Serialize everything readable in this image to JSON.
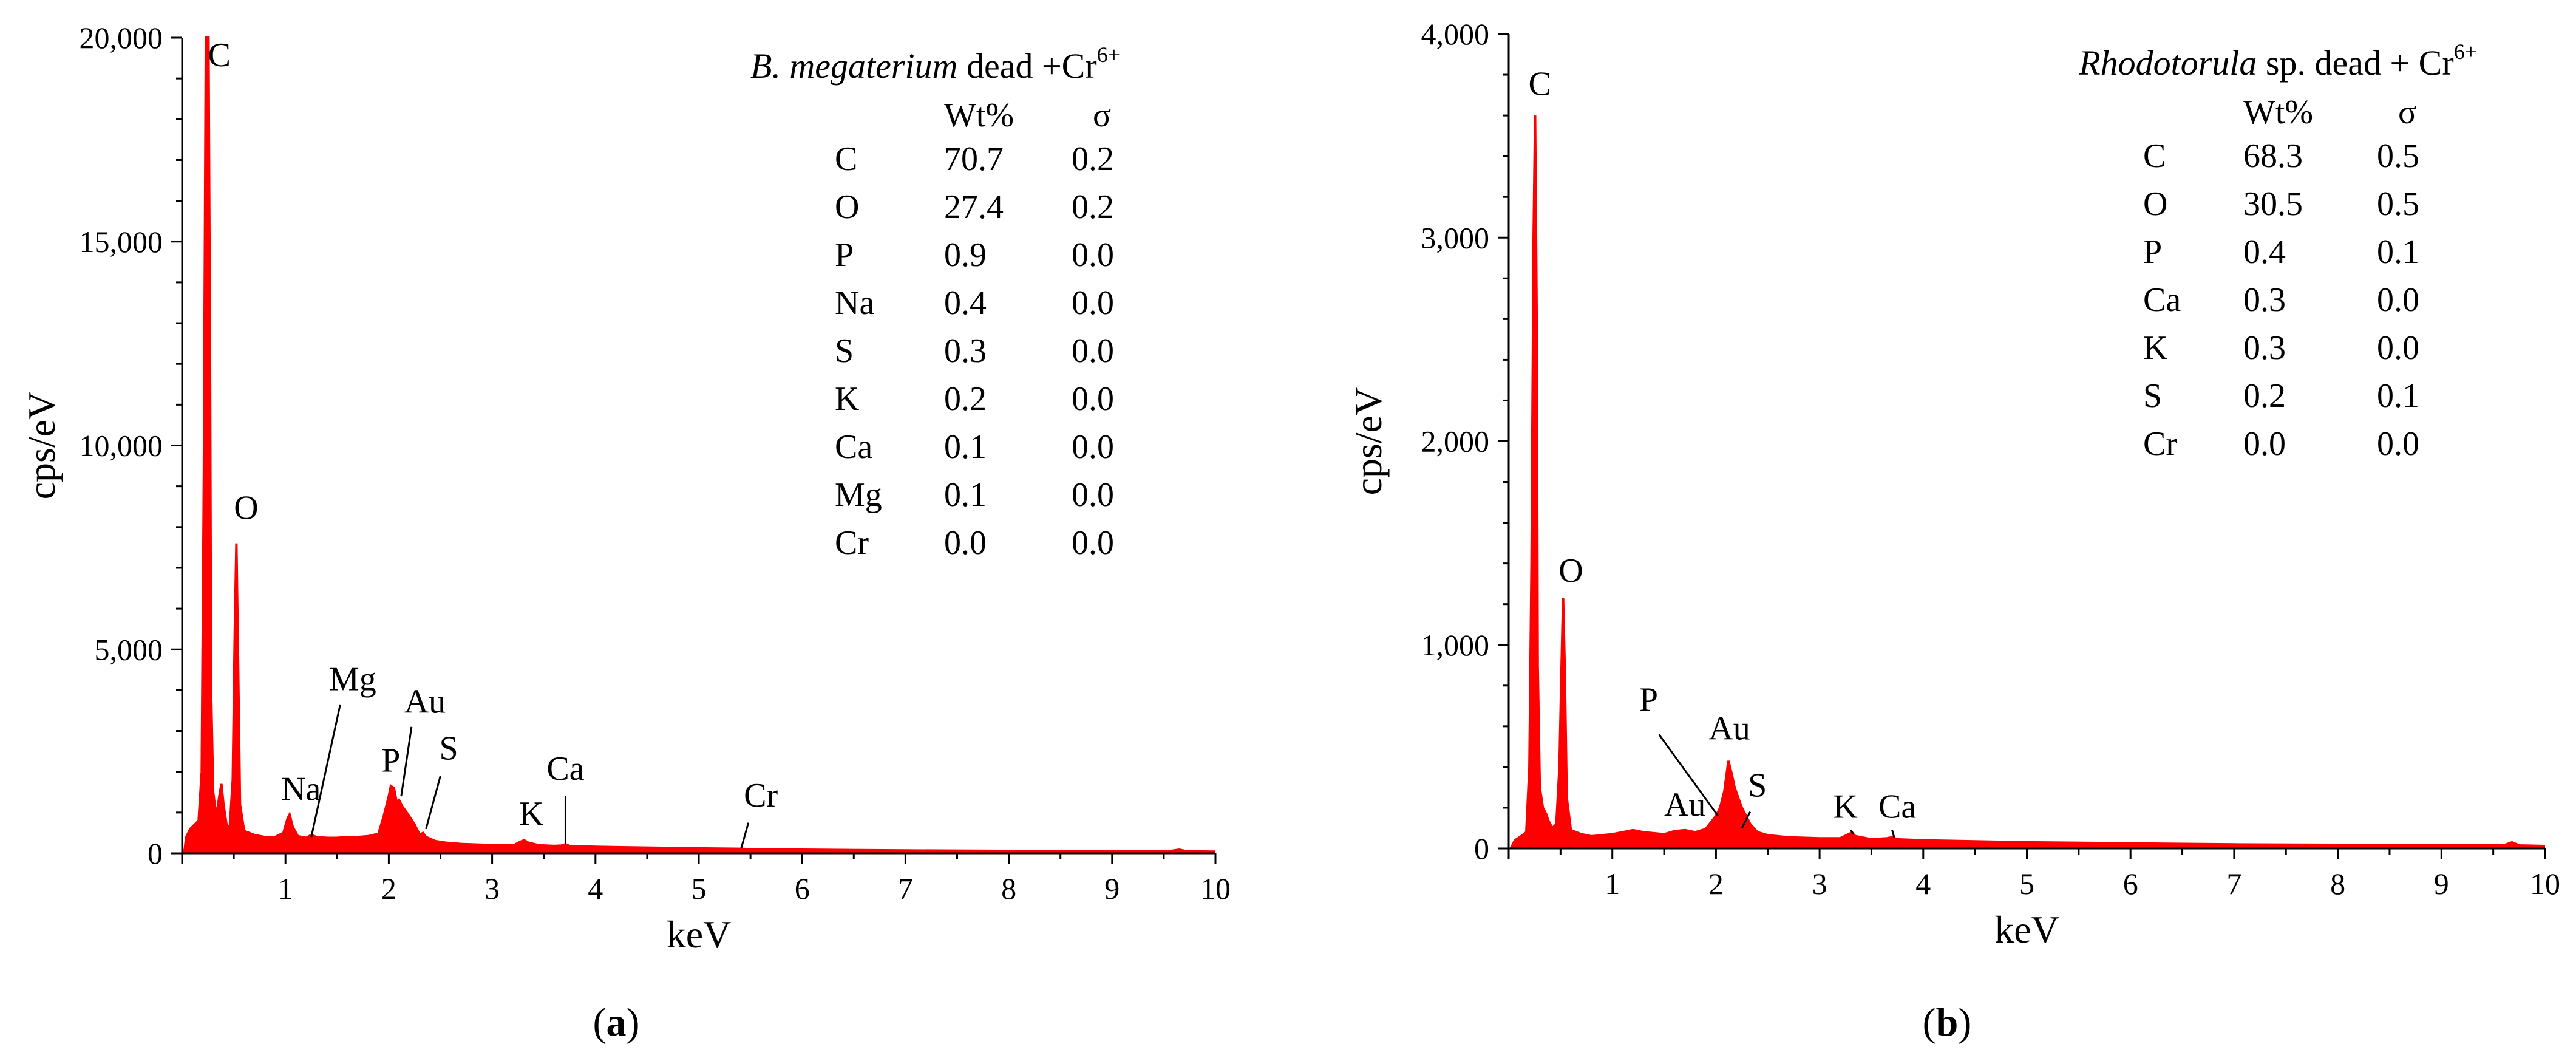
{
  "chart_data": [
    {
      "type": "line",
      "panel_label": "a",
      "colors": {
        "spectrum": "#ff0000",
        "axis": "#000000"
      },
      "title": {
        "species": "B. megaterium",
        "rest": " dead +Cr",
        "superscript": "6+"
      },
      "xlabel": "keV",
      "ylabel": "cps/eV",
      "xlim": [
        0,
        10
      ],
      "ylim": [
        0,
        20000
      ],
      "xticks": [
        1,
        2,
        3,
        4,
        5,
        6,
        7,
        8,
        9,
        10
      ],
      "xtick_labels": [
        "1",
        "2",
        "3",
        "4",
        "5",
        "6",
        "7",
        "8",
        "9",
        "10"
      ],
      "yticks": [
        0,
        5000,
        10000,
        15000,
        20000
      ],
      "ytick_labels": [
        "0",
        "5,000",
        "10,000",
        "15,000",
        "20,000"
      ],
      "table": {
        "headers": [
          "Wt%",
          "σ"
        ],
        "rows": [
          {
            "element": "C",
            "wt": "70.7",
            "sigma": "0.2"
          },
          {
            "element": "O",
            "wt": "27.4",
            "sigma": "0.2"
          },
          {
            "element": "P",
            "wt": "0.9",
            "sigma": "0.0"
          },
          {
            "element": "Na",
            "wt": "0.4",
            "sigma": "0.0"
          },
          {
            "element": "S",
            "wt": "0.3",
            "sigma": "0.0"
          },
          {
            "element": "K",
            "wt": "0.2",
            "sigma": "0.0"
          },
          {
            "element": "Ca",
            "wt": "0.1",
            "sigma": "0.0"
          },
          {
            "element": "Mg",
            "wt": "0.1",
            "sigma": "0.0"
          },
          {
            "element": "Cr",
            "wt": "0.0",
            "sigma": "0.0"
          }
        ]
      },
      "spectrum": [
        [
          0.02,
          0
        ],
        [
          0.04,
          400
        ],
        [
          0.08,
          600
        ],
        [
          0.12,
          700
        ],
        [
          0.16,
          800
        ],
        [
          0.19,
          2000
        ],
        [
          0.21,
          9000
        ],
        [
          0.23,
          20000
        ],
        [
          0.255,
          20000
        ],
        [
          0.27,
          12000
        ],
        [
          0.28,
          4000
        ],
        [
          0.3,
          1500
        ],
        [
          0.33,
          900
        ],
        [
          0.36,
          1400
        ],
        [
          0.38,
          1700
        ],
        [
          0.4,
          1200
        ],
        [
          0.43,
          700
        ],
        [
          0.46,
          600
        ],
        [
          0.49,
          1800
        ],
        [
          0.51,
          5500
        ],
        [
          0.525,
          7600
        ],
        [
          0.54,
          5000
        ],
        [
          0.56,
          1200
        ],
        [
          0.6,
          550
        ],
        [
          0.7,
          450
        ],
        [
          0.8,
          400
        ],
        [
          0.9,
          400
        ],
        [
          0.98,
          500
        ],
        [
          1.02,
          850
        ],
        [
          1.04,
          950
        ],
        [
          1.07,
          650
        ],
        [
          1.12,
          420
        ],
        [
          1.2,
          380
        ],
        [
          1.25,
          450
        ],
        [
          1.3,
          400
        ],
        [
          1.4,
          380
        ],
        [
          1.5,
          380
        ],
        [
          1.6,
          400
        ],
        [
          1.7,
          400
        ],
        [
          1.8,
          420
        ],
        [
          1.9,
          480
        ],
        [
          1.95,
          900
        ],
        [
          2.0,
          1400
        ],
        [
          2.02,
          1650
        ],
        [
          2.05,
          1600
        ],
        [
          2.08,
          1200
        ],
        [
          2.1,
          1300
        ],
        [
          2.13,
          1150
        ],
        [
          2.16,
          1050
        ],
        [
          2.2,
          900
        ],
        [
          2.25,
          700
        ],
        [
          2.3,
          450
        ],
        [
          2.33,
          500
        ],
        [
          2.36,
          400
        ],
        [
          2.45,
          300
        ],
        [
          2.55,
          260
        ],
        [
          2.7,
          230
        ],
        [
          2.9,
          210
        ],
        [
          3.1,
          200
        ],
        [
          3.22,
          210
        ],
        [
          3.27,
          280
        ],
        [
          3.31,
          320
        ],
        [
          3.35,
          260
        ],
        [
          3.45,
          200
        ],
        [
          3.6,
          180
        ],
        [
          3.67,
          190
        ],
        [
          3.71,
          220
        ],
        [
          3.75,
          180
        ],
        [
          4.0,
          160
        ],
        [
          4.5,
          140
        ],
        [
          5.0,
          120
        ],
        [
          5.41,
          110
        ],
        [
          5.5,
          100
        ],
        [
          6.0,
          90
        ],
        [
          7.0,
          70
        ],
        [
          8.0,
          60
        ],
        [
          9.0,
          50
        ],
        [
          9.55,
          50
        ],
        [
          9.65,
          90
        ],
        [
          9.72,
          50
        ],
        [
          10.0,
          40
        ]
      ],
      "peak_labels": [
        {
          "text": "C",
          "x": 0.36,
          "y": 19300,
          "lx1": null
        },
        {
          "text": "O",
          "x": 0.62,
          "y": 8200,
          "lx1": null
        },
        {
          "text": "Mg",
          "x": 1.65,
          "y": 4000,
          "line": [
            [
              1.53,
              3650
            ],
            [
              1.25,
              400
            ]
          ]
        },
        {
          "text": "Au",
          "x": 2.35,
          "y": 3450,
          "line": [
            [
              2.22,
              3100
            ],
            [
              2.12,
              1400
            ]
          ]
        },
        {
          "text": "Na",
          "x": 1.15,
          "y": 1300,
          "line": null
        },
        {
          "text": "P",
          "x": 2.02,
          "y": 2000,
          "line": null
        },
        {
          "text": "S",
          "x": 2.58,
          "y": 2300,
          "line": [
            [
              2.5,
              1900
            ],
            [
              2.36,
              600
            ]
          ]
        },
        {
          "text": "Ca",
          "x": 3.71,
          "y": 1800,
          "line": [
            [
              3.71,
              1400
            ],
            [
              3.71,
              220
            ]
          ]
        },
        {
          "text": "K",
          "x": 3.38,
          "y": 700,
          "line": null
        },
        {
          "text": "Cr",
          "x": 5.6,
          "y": 1150,
          "line": [
            [
              5.48,
              750
            ],
            [
              5.41,
              120
            ]
          ]
        }
      ],
      "caption": "a"
    },
    {
      "type": "line",
      "panel_label": "b",
      "colors": {
        "spectrum": "#ff0000",
        "axis": "#000000"
      },
      "title": {
        "species": "Rhodotorula",
        "rest": " sp. dead + Cr",
        "superscript": "6+"
      },
      "xlabel": "keV",
      "ylabel": "cps/eV",
      "xlim": [
        0,
        10
      ],
      "ylim": [
        0,
        4000
      ],
      "xticks": [
        1,
        2,
        3,
        4,
        5,
        6,
        7,
        8,
        9,
        10
      ],
      "xtick_labels": [
        "1",
        "2",
        "3",
        "4",
        "5",
        "6",
        "7",
        "8",
        "9",
        "10"
      ],
      "yticks": [
        0,
        1000,
        2000,
        3000,
        4000
      ],
      "ytick_labels": [
        "0",
        "1,000",
        "2,000",
        "3,000",
        "4,000"
      ],
      "table": {
        "headers": [
          "Wt%",
          "σ"
        ],
        "rows": [
          {
            "element": "C",
            "wt": "68.3",
            "sigma": "0.5"
          },
          {
            "element": "O",
            "wt": "30.5",
            "sigma": "0.5"
          },
          {
            "element": "P",
            "wt": "0.4",
            "sigma": "0.1"
          },
          {
            "element": "Ca",
            "wt": "0.3",
            "sigma": "0.0"
          },
          {
            "element": "K",
            "wt": "0.3",
            "sigma": "0.0"
          },
          {
            "element": "S",
            "wt": "0.2",
            "sigma": "0.1"
          },
          {
            "element": "Cr",
            "wt": "0.0",
            "sigma": "0.0"
          }
        ]
      },
      "spectrum": [
        [
          0.02,
          0
        ],
        [
          0.06,
          40
        ],
        [
          0.12,
          60
        ],
        [
          0.17,
          80
        ],
        [
          0.2,
          400
        ],
        [
          0.22,
          1400
        ],
        [
          0.24,
          3000
        ],
        [
          0.255,
          3600
        ],
        [
          0.27,
          2600
        ],
        [
          0.28,
          900
        ],
        [
          0.3,
          300
        ],
        [
          0.33,
          200
        ],
        [
          0.36,
          170
        ],
        [
          0.38,
          140
        ],
        [
          0.42,
          100
        ],
        [
          0.46,
          120
        ],
        [
          0.49,
          400
        ],
        [
          0.51,
          900
        ],
        [
          0.525,
          1230
        ],
        [
          0.54,
          900
        ],
        [
          0.56,
          250
        ],
        [
          0.6,
          90
        ],
        [
          0.7,
          70
        ],
        [
          0.8,
          60
        ],
        [
          0.9,
          65
        ],
        [
          1.0,
          70
        ],
        [
          1.1,
          80
        ],
        [
          1.2,
          90
        ],
        [
          1.3,
          80
        ],
        [
          1.4,
          75
        ],
        [
          1.5,
          70
        ],
        [
          1.6,
          85
        ],
        [
          1.7,
          90
        ],
        [
          1.8,
          80
        ],
        [
          1.9,
          95
        ],
        [
          2.0,
          160
        ],
        [
          2.04,
          200
        ],
        [
          2.08,
          280
        ],
        [
          2.12,
          430
        ],
        [
          2.15,
          370
        ],
        [
          2.18,
          300
        ],
        [
          2.22,
          240
        ],
        [
          2.25,
          200
        ],
        [
          2.3,
          150
        ],
        [
          2.33,
          120
        ],
        [
          2.4,
          80
        ],
        [
          2.5,
          65
        ],
        [
          2.7,
          55
        ],
        [
          3.0,
          50
        ],
        [
          3.2,
          50
        ],
        [
          3.3,
          75
        ],
        [
          3.35,
          60
        ],
        [
          3.5,
          45
        ],
        [
          3.65,
          50
        ],
        [
          3.7,
          55
        ],
        [
          3.75,
          45
        ],
        [
          4.0,
          40
        ],
        [
          4.5,
          35
        ],
        [
          5.0,
          30
        ],
        [
          6.0,
          25
        ],
        [
          7.0,
          20
        ],
        [
          8.0,
          18
        ],
        [
          9.0,
          15
        ],
        [
          9.6,
          15
        ],
        [
          9.68,
          30
        ],
        [
          9.75,
          15
        ],
        [
          10.0,
          12
        ]
      ],
      "peak_labels": [
        {
          "text": "C",
          "x": 0.3,
          "y": 3700,
          "line": null
        },
        {
          "text": "O",
          "x": 0.6,
          "y": 1310,
          "line": null
        },
        {
          "text": "P",
          "x": 1.35,
          "y": 675,
          "line": [
            [
              1.45,
              560
            ],
            [
              2.02,
              160
            ]
          ]
        },
        {
          "text": "Au",
          "x": 2.13,
          "y": 535,
          "line": null
        },
        {
          "text": "Au",
          "x": 1.7,
          "y": 160,
          "line": null
        },
        {
          "text": "S",
          "x": 2.4,
          "y": 255,
          "line": [
            [
              2.33,
              180
            ],
            [
              2.25,
              100
            ]
          ]
        },
        {
          "text": "K",
          "x": 3.25,
          "y": 150,
          "line": [
            [
              3.3,
              90
            ],
            [
              3.33,
              70
            ]
          ]
        },
        {
          "text": "Ca",
          "x": 3.75,
          "y": 150,
          "line": [
            [
              3.7,
              90
            ],
            [
              3.72,
              55
            ]
          ]
        }
      ],
      "caption": "b"
    }
  ]
}
